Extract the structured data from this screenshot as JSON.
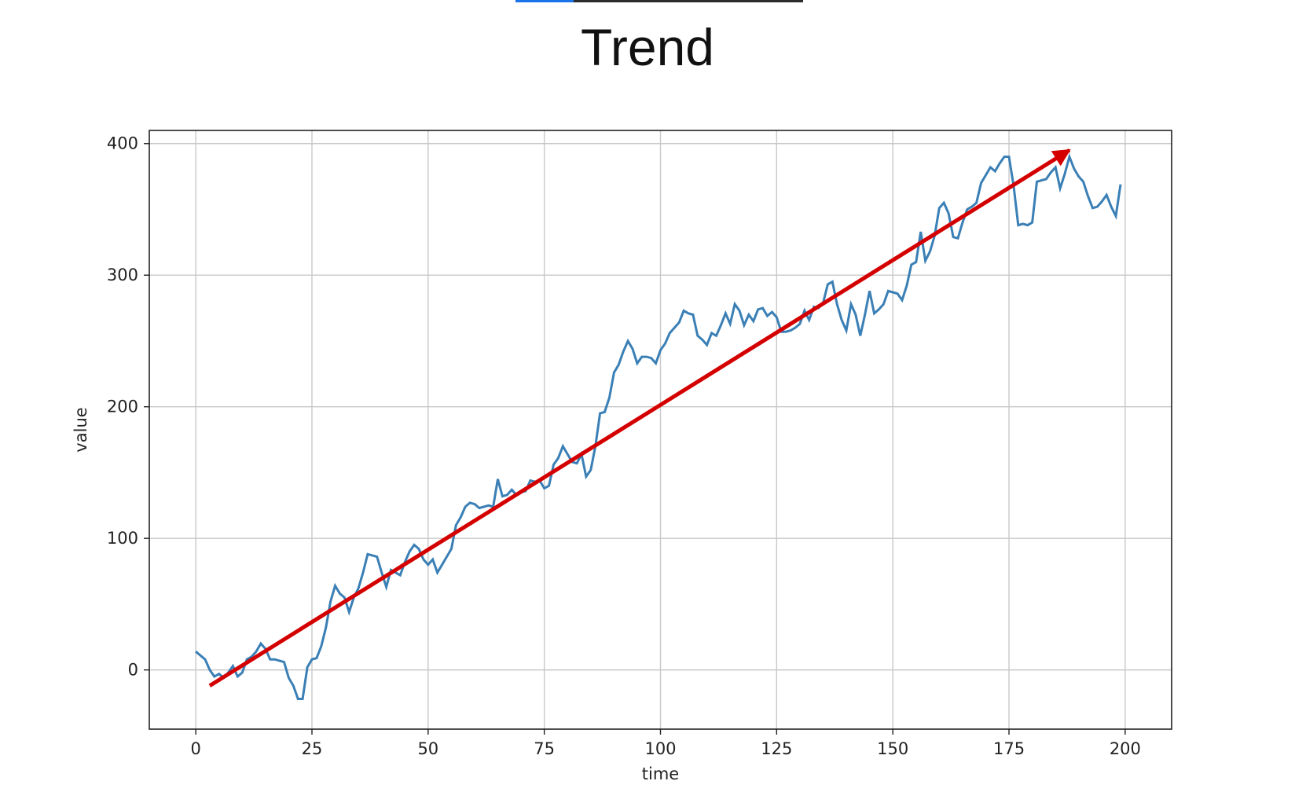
{
  "slide": {
    "title": "Trend"
  },
  "chart_data": {
    "type": "line",
    "xlabel": "time",
    "ylabel": "value",
    "xlim": [
      -10,
      210
    ],
    "ylim": [
      -45,
      410
    ],
    "xticks": [
      0,
      25,
      50,
      75,
      100,
      125,
      150,
      175,
      200
    ],
    "yticks": [
      0,
      100,
      200,
      300,
      400
    ],
    "grid": true,
    "colors": {
      "series": "#3a7fb5",
      "arrow": "#d40000"
    },
    "series": [
      {
        "points": [
          [
            0,
            14
          ],
          [
            2,
            8
          ],
          [
            3,
            0
          ],
          [
            4,
            -5
          ],
          [
            5,
            -3
          ],
          [
            6,
            -6
          ],
          [
            7,
            -2
          ],
          [
            8,
            3
          ],
          [
            9,
            -5
          ],
          [
            10,
            -2
          ],
          [
            11,
            8
          ],
          [
            12,
            10
          ],
          [
            13,
            14
          ],
          [
            14,
            20
          ],
          [
            15,
            16
          ],
          [
            16,
            8
          ],
          [
            17,
            8
          ],
          [
            18,
            7
          ],
          [
            19,
            6
          ],
          [
            20,
            -6
          ],
          [
            21,
            -12
          ],
          [
            22,
            -22
          ],
          [
            23,
            -22
          ],
          [
            24,
            2
          ],
          [
            25,
            8
          ],
          [
            26,
            9
          ],
          [
            27,
            18
          ],
          [
            28,
            32
          ],
          [
            29,
            52
          ],
          [
            30,
            64
          ],
          [
            31,
            58
          ],
          [
            32,
            55
          ],
          [
            33,
            44
          ],
          [
            34,
            55
          ],
          [
            35,
            62
          ],
          [
            36,
            74
          ],
          [
            37,
            88
          ],
          [
            38,
            87
          ],
          [
            39,
            86
          ],
          [
            40,
            74
          ],
          [
            41,
            63
          ],
          [
            42,
            76
          ],
          [
            43,
            74
          ],
          [
            44,
            72
          ],
          [
            45,
            82
          ],
          [
            46,
            90
          ],
          [
            47,
            95
          ],
          [
            48,
            92
          ],
          [
            49,
            84
          ],
          [
            50,
            80
          ],
          [
            51,
            84
          ],
          [
            52,
            74
          ],
          [
            53,
            80
          ],
          [
            54,
            86
          ],
          [
            55,
            92
          ],
          [
            56,
            110
          ],
          [
            57,
            116
          ],
          [
            58,
            124
          ],
          [
            59,
            127
          ],
          [
            60,
            126
          ],
          [
            61,
            123
          ],
          [
            62,
            124
          ],
          [
            63,
            125
          ],
          [
            64,
            124
          ],
          [
            65,
            145
          ],
          [
            66,
            132
          ],
          [
            67,
            133
          ],
          [
            68,
            137
          ],
          [
            69,
            133
          ],
          [
            70,
            135
          ],
          [
            71,
            136
          ],
          [
            72,
            144
          ],
          [
            73,
            143
          ],
          [
            74,
            144
          ],
          [
            75,
            138
          ],
          [
            76,
            140
          ],
          [
            77,
            156
          ],
          [
            78,
            161
          ],
          [
            79,
            170
          ],
          [
            80,
            164
          ],
          [
            81,
            158
          ],
          [
            82,
            157
          ],
          [
            83,
            164
          ],
          [
            84,
            147
          ],
          [
            85,
            152
          ],
          [
            86,
            170
          ],
          [
            87,
            195
          ],
          [
            88,
            196
          ],
          [
            89,
            207
          ],
          [
            90,
            226
          ],
          [
            91,
            232
          ],
          [
            92,
            242
          ],
          [
            93,
            250
          ],
          [
            94,
            244
          ],
          [
            95,
            233
          ],
          [
            96,
            238
          ],
          [
            97,
            238
          ],
          [
            98,
            237
          ],
          [
            99,
            233
          ],
          [
            100,
            243
          ],
          [
            101,
            248
          ],
          [
            102,
            256
          ],
          [
            103,
            260
          ],
          [
            104,
            264
          ],
          [
            105,
            273
          ],
          [
            106,
            271
          ],
          [
            107,
            270
          ],
          [
            108,
            254
          ],
          [
            109,
            251
          ],
          [
            110,
            247
          ],
          [
            111,
            256
          ],
          [
            112,
            254
          ],
          [
            113,
            262
          ],
          [
            114,
            271
          ],
          [
            115,
            263
          ],
          [
            116,
            278
          ],
          [
            117,
            273
          ],
          [
            118,
            262
          ],
          [
            119,
            270
          ],
          [
            120,
            265
          ],
          [
            121,
            274
          ],
          [
            122,
            275
          ],
          [
            123,
            269
          ],
          [
            124,
            272
          ],
          [
            125,
            268
          ],
          [
            126,
            257
          ],
          [
            127,
            257
          ],
          [
            128,
            258
          ],
          [
            129,
            260
          ],
          [
            130,
            263
          ],
          [
            131,
            273
          ],
          [
            132,
            266
          ],
          [
            133,
            276
          ],
          [
            134,
            275
          ],
          [
            135,
            279
          ],
          [
            136,
            293
          ],
          [
            137,
            295
          ],
          [
            138,
            278
          ],
          [
            139,
            266
          ],
          [
            140,
            258
          ],
          [
            141,
            278
          ],
          [
            142,
            270
          ],
          [
            143,
            254
          ],
          [
            144,
            270
          ],
          [
            145,
            288
          ],
          [
            146,
            271
          ],
          [
            147,
            274
          ],
          [
            148,
            278
          ],
          [
            149,
            288
          ],
          [
            150,
            287
          ],
          [
            151,
            286
          ],
          [
            152,
            281
          ],
          [
            153,
            292
          ],
          [
            154,
            308
          ],
          [
            155,
            310
          ],
          [
            156,
            333
          ],
          [
            157,
            311
          ],
          [
            158,
            318
          ],
          [
            159,
            330
          ],
          [
            160,
            351
          ],
          [
            161,
            355
          ],
          [
            162,
            347
          ],
          [
            163,
            329
          ],
          [
            164,
            328
          ],
          [
            165,
            340
          ],
          [
            166,
            350
          ],
          [
            167,
            352
          ],
          [
            168,
            355
          ],
          [
            169,
            370
          ],
          [
            170,
            376
          ],
          [
            171,
            382
          ],
          [
            172,
            379
          ],
          [
            173,
            385
          ],
          [
            174,
            390
          ],
          [
            175,
            390
          ],
          [
            176,
            368
          ],
          [
            177,
            338
          ],
          [
            178,
            339
          ],
          [
            179,
            338
          ],
          [
            180,
            340
          ],
          [
            181,
            371
          ],
          [
            182,
            372
          ],
          [
            183,
            373
          ],
          [
            184,
            378
          ],
          [
            185,
            382
          ],
          [
            186,
            366
          ],
          [
            187,
            377
          ],
          [
            188,
            390
          ],
          [
            189,
            381
          ],
          [
            190,
            375
          ],
          [
            191,
            371
          ],
          [
            192,
            360
          ],
          [
            193,
            351
          ],
          [
            194,
            352
          ],
          [
            195,
            356
          ],
          [
            196,
            361
          ],
          [
            197,
            352
          ],
          [
            198,
            345
          ],
          [
            199,
            369
          ]
        ]
      }
    ],
    "annotation": {
      "type": "arrow",
      "from": [
        3,
        -12
      ],
      "to": [
        188,
        395
      ]
    }
  }
}
